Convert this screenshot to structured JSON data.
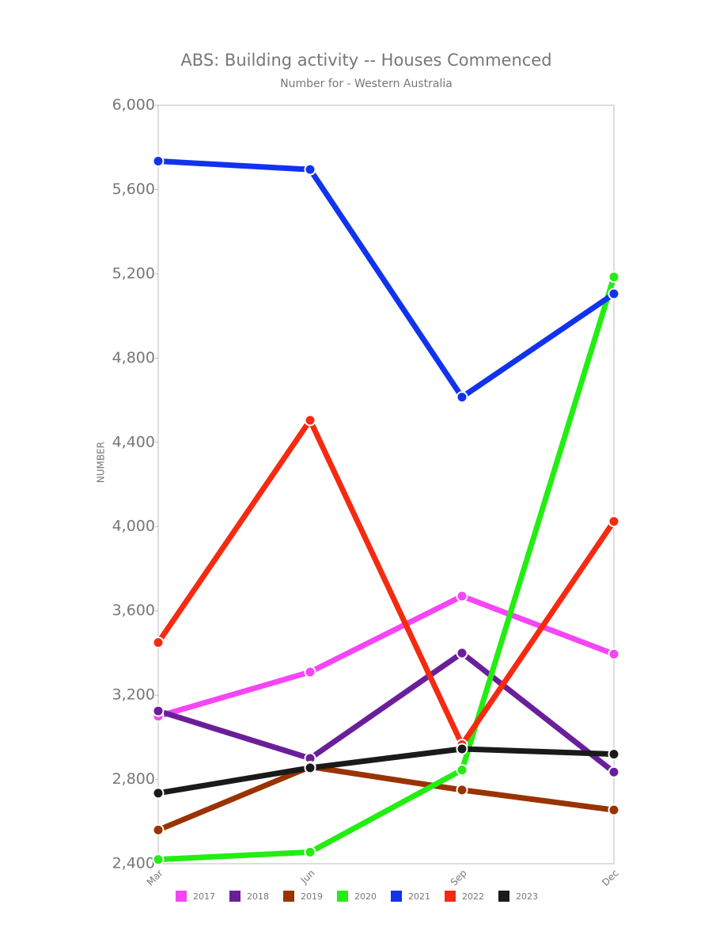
{
  "chart_data": {
    "type": "line",
    "title": "ABS: Building activity -- Houses Commenced",
    "subtitle": "Number for - Western Australia",
    "y_label": "NUMBER",
    "categories": [
      "Mar",
      "Jun",
      "Sep",
      "Dec"
    ],
    "series": [
      {
        "name": "2017",
        "color": "#f545f5",
        "values": [
          3100,
          3310,
          3670,
          3395
        ]
      },
      {
        "name": "2018",
        "color": "#6a1f9a",
        "values": [
          3125,
          2900,
          3400,
          2835
        ]
      },
      {
        "name": "2019",
        "color": "#993300",
        "values": [
          2560,
          2860,
          2750,
          2655
        ]
      },
      {
        "name": "2020",
        "color": "#22ee11",
        "values": [
          2420,
          2455,
          2845,
          5185
        ]
      },
      {
        "name": "2021",
        "color": "#1133ee",
        "values": [
          5735,
          5695,
          4615,
          5105
        ]
      },
      {
        "name": "2022",
        "color": "#f52a11",
        "values": [
          3450,
          4505,
          2965,
          4025
        ]
      },
      {
        "name": "2023",
        "color": "#1a1a1a",
        "values": [
          2735,
          2855,
          2945,
          2920
        ]
      }
    ],
    "ylim": [
      2400,
      6000
    ],
    "yticks": [
      {
        "value": 2400,
        "label": "2,400"
      },
      {
        "value": 2800,
        "label": "2,800"
      },
      {
        "value": 3200,
        "label": "3,200"
      },
      {
        "value": 3600,
        "label": "3,600"
      },
      {
        "value": 4000,
        "label": "4,000"
      },
      {
        "value": 4400,
        "label": "4,400"
      },
      {
        "value": 4800,
        "label": "4,800"
      },
      {
        "value": 5200,
        "label": "5,200"
      },
      {
        "value": 5600,
        "label": "5,600"
      },
      {
        "value": 6000,
        "label": "6,000"
      }
    ],
    "grid": false
  }
}
